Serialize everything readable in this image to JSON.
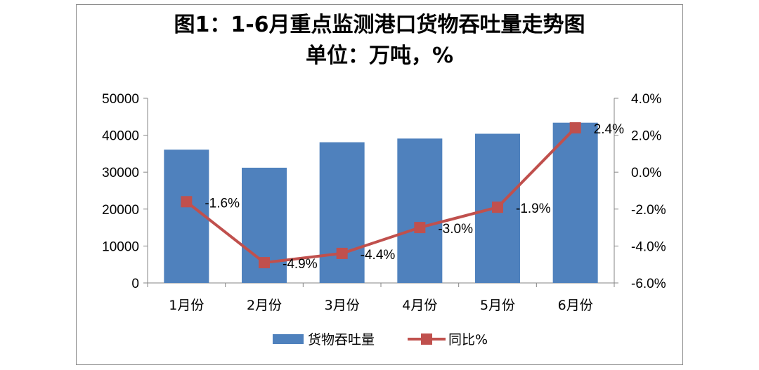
{
  "chart_data": {
    "type": "bar+line",
    "title": "图1：1-6月重点监测港口货物吞吐量走势图",
    "subtitle": "单位：万吨，%",
    "categories": [
      "1月份",
      "2月份",
      "3月份",
      "4月份",
      "5月份",
      "6月份"
    ],
    "series": [
      {
        "name": "货物吞吐量",
        "type": "bar",
        "axis": "left",
        "color": "#4f81bd",
        "values": [
          36100,
          31200,
          38100,
          39100,
          40400,
          43400
        ]
      },
      {
        "name": "同比%",
        "type": "line",
        "axis": "right",
        "color": "#c0504d",
        "values": [
          -1.6,
          -4.9,
          -4.4,
          -3.0,
          -1.9,
          2.4
        ],
        "labels": [
          "-1.6%",
          "-4.9%",
          "-4.4%",
          "-3.0%",
          "-1.9%",
          "2.4%"
        ]
      }
    ],
    "y_left": {
      "min": 0,
      "max": 50000,
      "ticks": [
        "0",
        "10000",
        "20000",
        "30000",
        "40000",
        "50000"
      ]
    },
    "y_right": {
      "min": -6,
      "max": 4,
      "ticks": [
        "-6.0%",
        "-4.0%",
        "-2.0%",
        "0.0%",
        "2.0%",
        "4.0%"
      ]
    },
    "grid": false,
    "legend": "bottom"
  }
}
